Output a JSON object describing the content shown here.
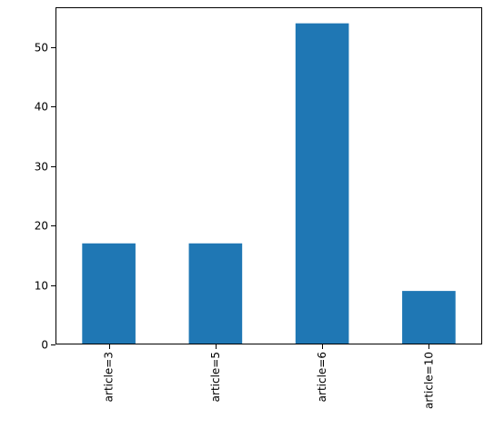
{
  "chart_data": {
    "type": "bar",
    "categories": [
      "article=3",
      "article=5",
      "article=6",
      "article=10"
    ],
    "values": [
      17,
      17,
      54,
      9
    ],
    "title": "",
    "xlabel": "",
    "ylabel": "",
    "ylim": [
      0,
      56.7
    ],
    "yticks": [
      0,
      10,
      20,
      30,
      40,
      50
    ],
    "grid": false,
    "legend": "none",
    "colors": {
      "bar": "#1f77b4",
      "axis": "#000000",
      "background": "#ffffff"
    }
  }
}
